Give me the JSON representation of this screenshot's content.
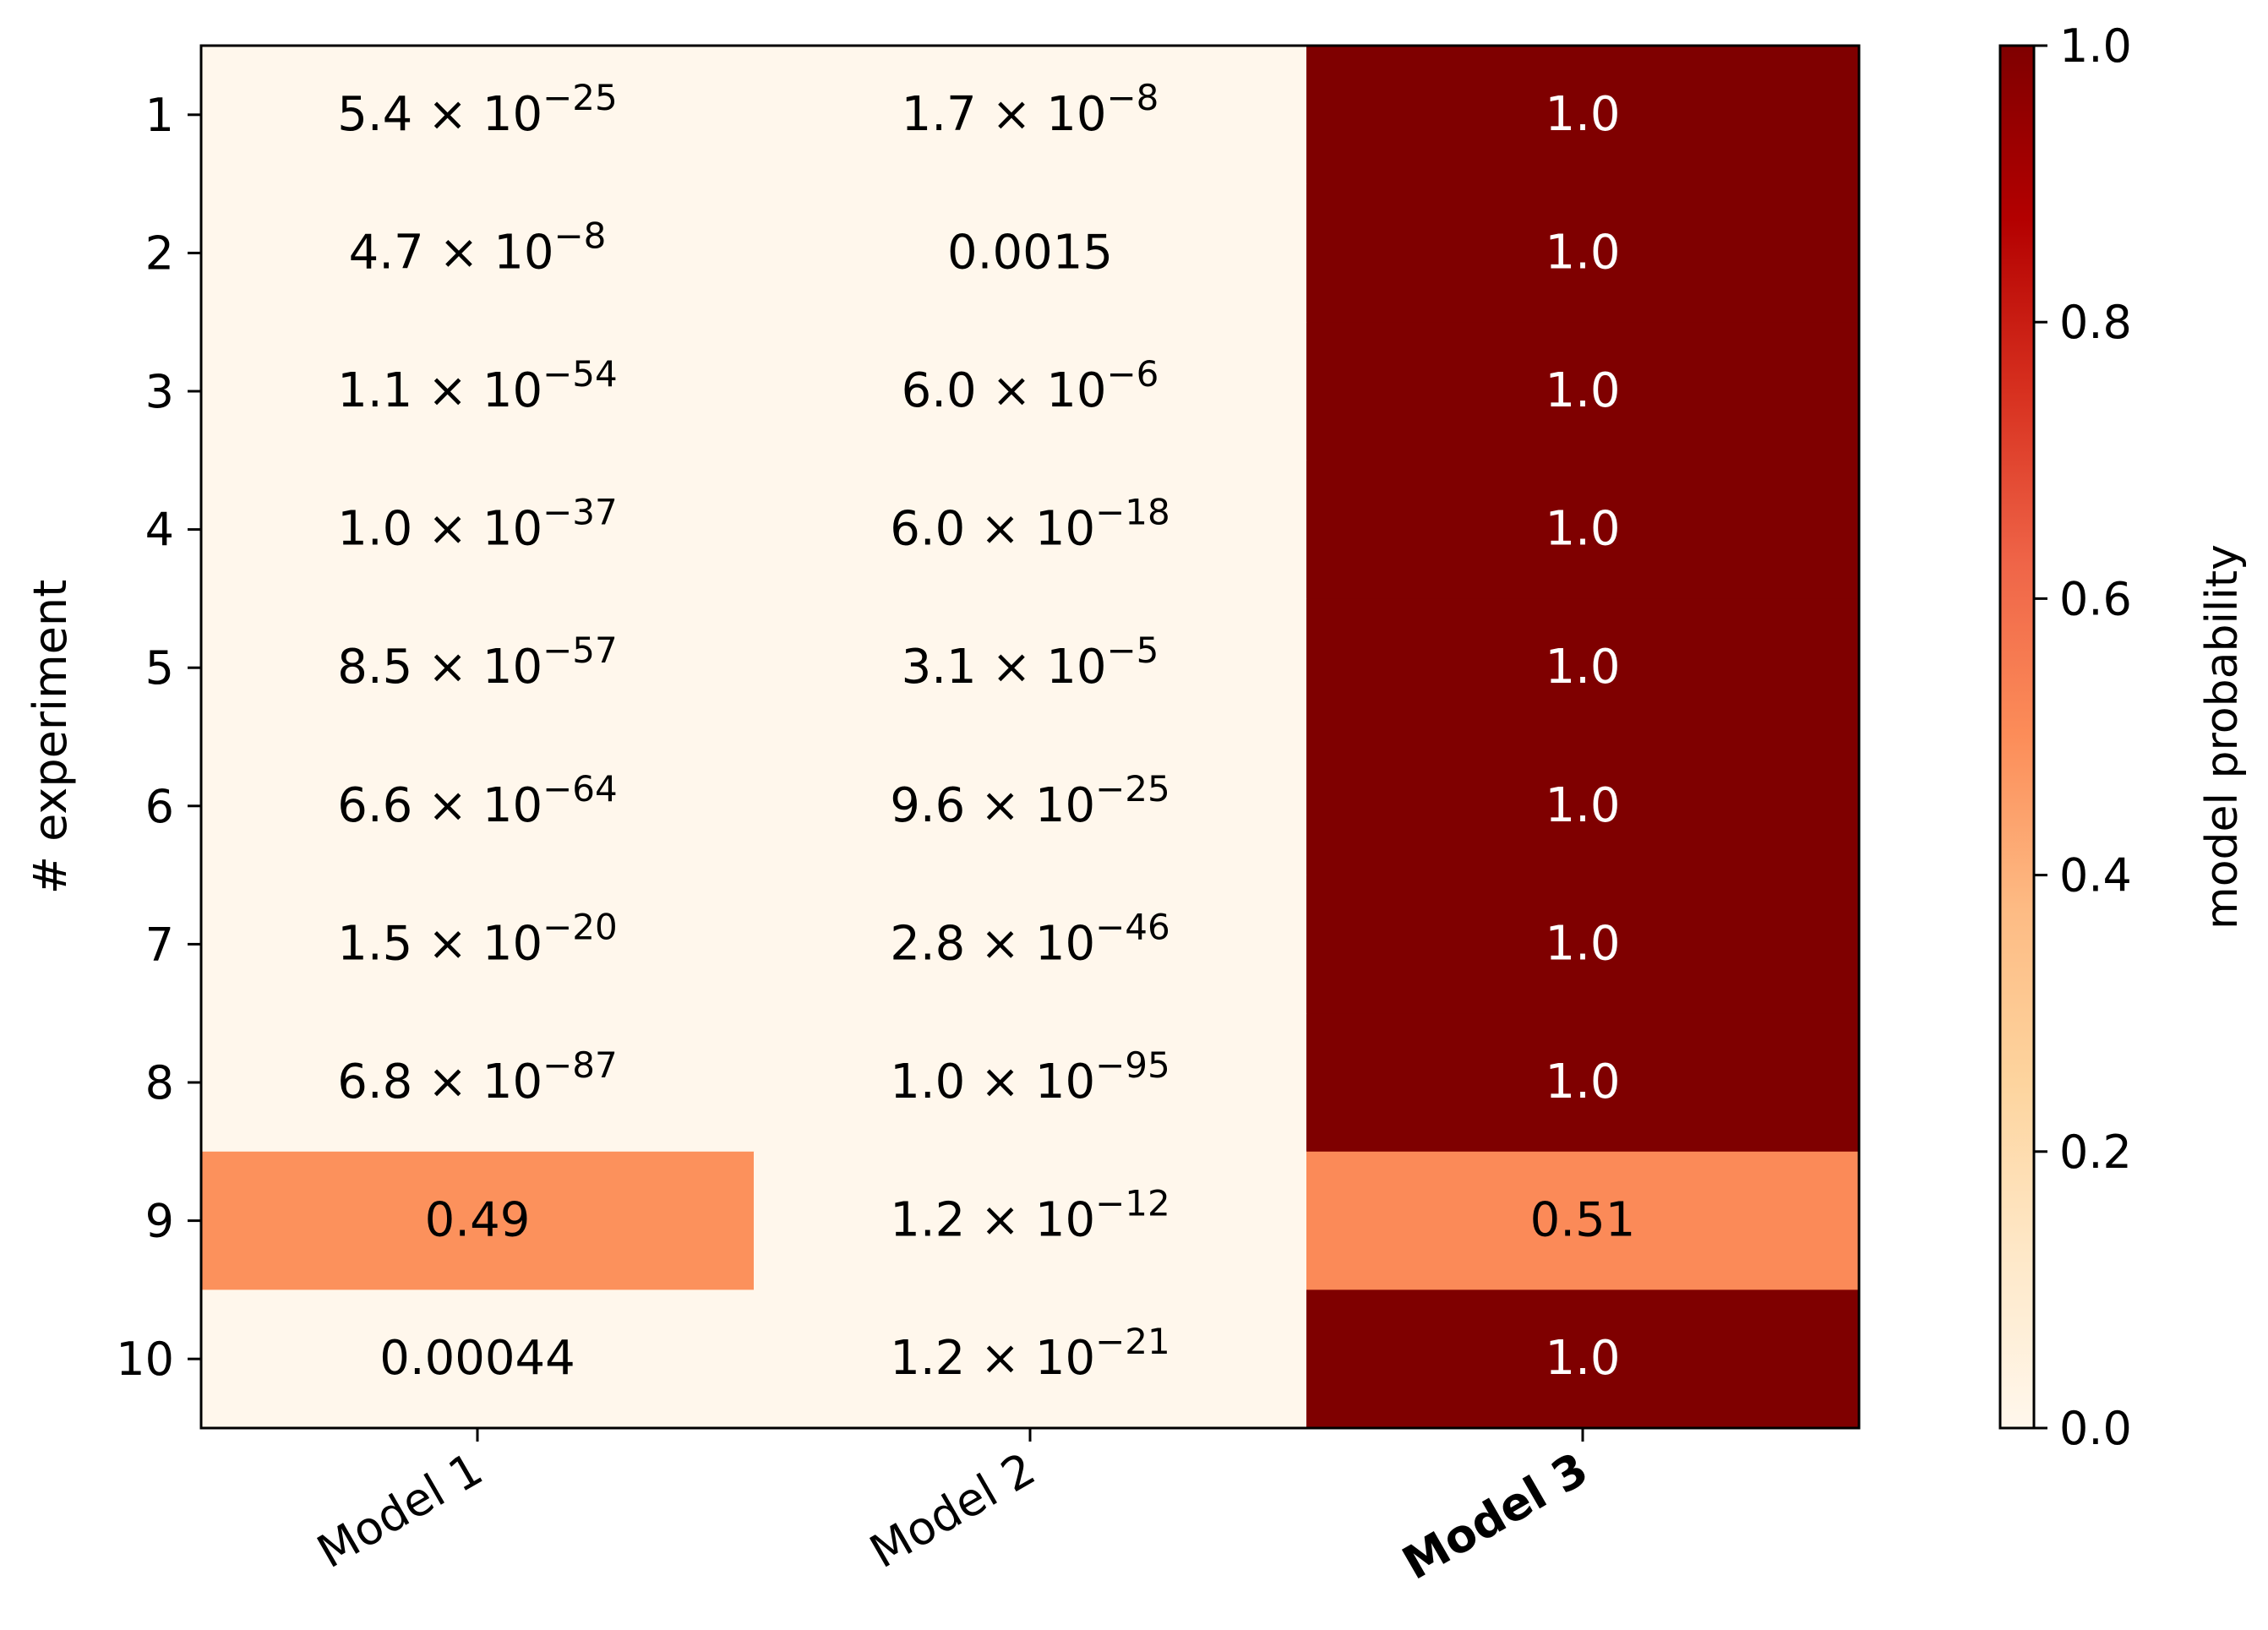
{
  "chart_data": {
    "type": "heatmap",
    "title": "",
    "xlabel": "",
    "ylabel": "# experiment",
    "columns": [
      "Model 1",
      "Model 2",
      "Model 3"
    ],
    "bold_column": "Model 3",
    "rows": [
      "1",
      "2",
      "3",
      "4",
      "5",
      "6",
      "7",
      "8",
      "9",
      "10"
    ],
    "values": [
      [
        5.4e-25,
        1.7e-08,
        1.0
      ],
      [
        4.7e-08,
        0.0015,
        1.0
      ],
      [
        1.1e-54,
        6e-06,
        1.0
      ],
      [
        1e-37,
        6e-18,
        1.0
      ],
      [
        8.5e-57,
        3.1e-05,
        1.0
      ],
      [
        6.6e-64,
        9.6e-25,
        1.0
      ],
      [
        1.5e-20,
        2.8e-46,
        1.0
      ],
      [
        6.8e-87,
        1e-95,
        1.0
      ],
      [
        0.49,
        1.2e-12,
        0.51
      ],
      [
        0.00044,
        1.2e-21,
        1.0
      ]
    ],
    "cell_labels": [
      [
        {
          "m": "5.4",
          "e": "−25"
        },
        {
          "m": "1.7",
          "e": "−8"
        },
        {
          "t": "1.0"
        }
      ],
      [
        {
          "m": "4.7",
          "e": "−8"
        },
        {
          "t": "0.0015"
        },
        {
          "t": "1.0"
        }
      ],
      [
        {
          "m": "1.1",
          "e": "−54"
        },
        {
          "m": "6.0",
          "e": "−6"
        },
        {
          "t": "1.0"
        }
      ],
      [
        {
          "m": "1.0",
          "e": "−37"
        },
        {
          "m": "6.0",
          "e": "−18"
        },
        {
          "t": "1.0"
        }
      ],
      [
        {
          "m": "8.5",
          "e": "−57"
        },
        {
          "m": "3.1",
          "e": "−5"
        },
        {
          "t": "1.0"
        }
      ],
      [
        {
          "m": "6.6",
          "e": "−64"
        },
        {
          "m": "9.6",
          "e": "−25"
        },
        {
          "t": "1.0"
        }
      ],
      [
        {
          "m": "1.5",
          "e": "−20"
        },
        {
          "m": "2.8",
          "e": "−46"
        },
        {
          "t": "1.0"
        }
      ],
      [
        {
          "m": "6.8",
          "e": "−87"
        },
        {
          "m": "1.0",
          "e": "−95"
        },
        {
          "t": "1.0"
        }
      ],
      [
        {
          "t": "0.49"
        },
        {
          "m": "1.2",
          "e": "−12"
        },
        {
          "t": "0.51"
        }
      ],
      [
        {
          "t": "0.00044"
        },
        {
          "m": "1.2",
          "e": "−21"
        },
        {
          "t": "1.0"
        }
      ]
    ],
    "times_symbol": "×",
    "power_base": "10",
    "colorbar": {
      "label": "model probability",
      "range": [
        0,
        1
      ],
      "ticks": [
        "0.0",
        "0.2",
        "0.4",
        "0.6",
        "0.8",
        "1.0"
      ],
      "colormap": "OrRd",
      "stops": [
        "#fff7ec",
        "#fee8c8",
        "#fdd49e",
        "#fdbb84",
        "#fc8d59",
        "#ef6548",
        "#d7301f",
        "#b30000",
        "#7f0000"
      ]
    },
    "colors": {
      "axis": "#000000",
      "text_dark": "#000000",
      "text_light": "#ffffff"
    }
  }
}
